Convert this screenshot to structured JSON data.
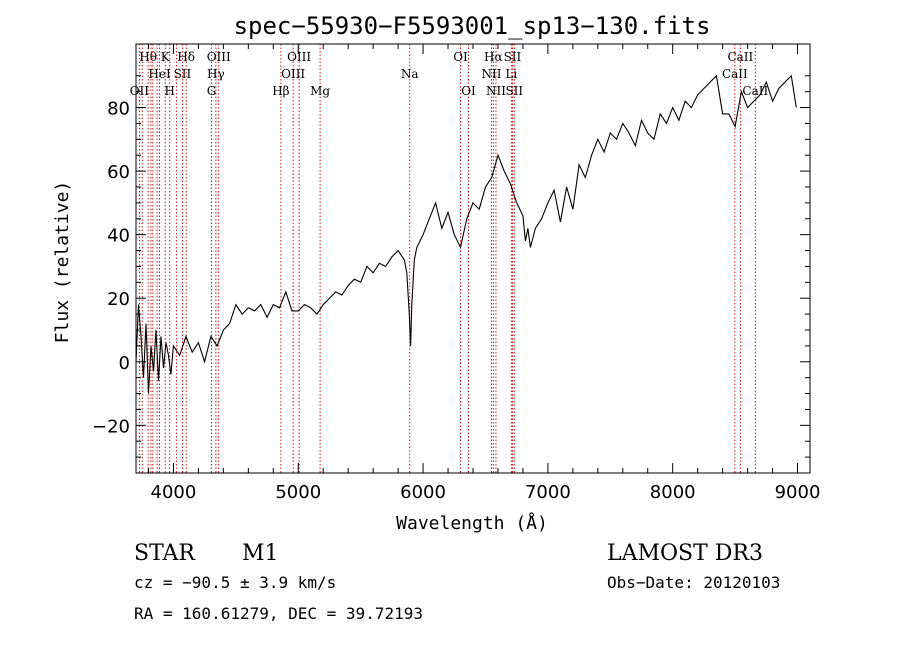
{
  "chart_data": {
    "type": "line",
    "title": "spec−55930−F5593001_sp13−130.fits",
    "xlabel": "Wavelength (Å)",
    "ylabel": "Flux (relative)",
    "xlim": [
      3700,
      9100
    ],
    "ylim": [
      -35,
      100
    ],
    "xticks": [
      {
        "value": 4000,
        "label": "4000"
      },
      {
        "value": 5000,
        "label": "5000"
      },
      {
        "value": 6000,
        "label": "6000"
      },
      {
        "value": 7000,
        "label": "7000"
      },
      {
        "value": 8000,
        "label": "8000"
      },
      {
        "value": 9000,
        "label": "9000"
      }
    ],
    "yticks": [
      {
        "value": -20,
        "label": "−20"
      },
      {
        "value": 0,
        "label": "0"
      },
      {
        "value": 20,
        "label": "20"
      },
      {
        "value": 40,
        "label": "40"
      },
      {
        "value": 60,
        "label": "60"
      },
      {
        "value": 80,
        "label": "80"
      }
    ],
    "series": [
      {
        "name": "flux",
        "color": "#000000",
        "x": [
          3700,
          3720,
          3740,
          3760,
          3780,
          3800,
          3820,
          3840,
          3860,
          3880,
          3900,
          3920,
          3940,
          3960,
          3980,
          4000,
          4050,
          4100,
          4150,
          4200,
          4250,
          4300,
          4350,
          4400,
          4450,
          4500,
          4550,
          4600,
          4650,
          4700,
          4750,
          4800,
          4850,
          4900,
          4950,
          5000,
          5050,
          5100,
          5150,
          5200,
          5250,
          5300,
          5350,
          5400,
          5450,
          5500,
          5550,
          5600,
          5650,
          5700,
          5750,
          5800,
          5850,
          5870,
          5890,
          5900,
          5910,
          5930,
          5950,
          6000,
          6050,
          6100,
          6150,
          6200,
          6250,
          6300,
          6350,
          6400,
          6450,
          6500,
          6550,
          6600,
          6650,
          6700,
          6750,
          6800,
          6820,
          6840,
          6860,
          6900,
          6950,
          7000,
          7050,
          7100,
          7150,
          7200,
          7250,
          7300,
          7350,
          7400,
          7450,
          7500,
          7550,
          7600,
          7650,
          7700,
          7750,
          7800,
          7850,
          7900,
          7950,
          8000,
          8050,
          8100,
          8150,
          8200,
          8250,
          8300,
          8350,
          8400,
          8450,
          8500,
          8550,
          8600,
          8650,
          8700,
          8750,
          8800,
          8850,
          8900,
          8950,
          8990
        ],
        "y": [
          0,
          18,
          8,
          -5,
          12,
          -10,
          5,
          -3,
          10,
          -6,
          8,
          -2,
          6,
          2,
          -4,
          5,
          2,
          8,
          3,
          6,
          0,
          8,
          5,
          10,
          12,
          18,
          15,
          17,
          16,
          18,
          14,
          18,
          17,
          22,
          16,
          16,
          18,
          17,
          15,
          18,
          20,
          22,
          21,
          24,
          26,
          25,
          30,
          28,
          31,
          30,
          33,
          35,
          32,
          28,
          15,
          5,
          18,
          32,
          36,
          40,
          45,
          50,
          42,
          47,
          40,
          36,
          45,
          50,
          48,
          55,
          58,
          65,
          60,
          56,
          50,
          46,
          38,
          42,
          36,
          42,
          45,
          50,
          54,
          44,
          55,
          48,
          62,
          58,
          65,
          70,
          66,
          72,
          70,
          75,
          72,
          68,
          76,
          72,
          70,
          78,
          75,
          80,
          76,
          82,
          80,
          84,
          86,
          88,
          90,
          78,
          78,
          74,
          85,
          80,
          82,
          84,
          88,
          82,
          86,
          88,
          90,
          80
        ]
      }
    ],
    "spectral_lines": [
      {
        "x": 3727,
        "label": "OII",
        "row": 2
      },
      {
        "x": 3750,
        "label": "",
        "row": 1
      },
      {
        "x": 3797,
        "label": "Hθ",
        "row": 0
      },
      {
        "x": 3820,
        "label": "",
        "row": 1
      },
      {
        "x": 3835,
        "label": "",
        "row": 0
      },
      {
        "x": 3869,
        "label": "",
        "row": 2
      },
      {
        "x": 3889,
        "label": "HeI",
        "row": 1
      },
      {
        "x": 3934,
        "label": "K",
        "row": 0
      },
      {
        "x": 3970,
        "label": "H",
        "row": 2
      },
      {
        "x": 4026,
        "label": "",
        "row": 1
      },
      {
        "x": 4072,
        "label": "SII",
        "row": 1
      },
      {
        "x": 4102,
        "label": "Hδ",
        "row": 0
      },
      {
        "x": 4305,
        "label": "G",
        "row": 2
      },
      {
        "x": 4340,
        "label": "Hγ",
        "row": 1
      },
      {
        "x": 4363,
        "label": "OIII",
        "row": 0
      },
      {
        "x": 4861,
        "label": "Hβ",
        "row": 2
      },
      {
        "x": 4959,
        "label": "OIII",
        "row": 1
      },
      {
        "x": 5007,
        "label": "OIII",
        "row": 0
      },
      {
        "x": 5175,
        "label": "Mg",
        "row": 2
      },
      {
        "x": 5893,
        "label": "Na",
        "row": 1
      },
      {
        "x": 6300,
        "label": "OI",
        "row": 0
      },
      {
        "x": 6364,
        "label": "OI",
        "row": 2
      },
      {
        "x": 6548,
        "label": "NII",
        "row": 1
      },
      {
        "x": 6563,
        "label": "Hα",
        "row": 0
      },
      {
        "x": 6584,
        "label": "NII",
        "row": 2
      },
      {
        "x": 6707,
        "label": "Li",
        "row": 1
      },
      {
        "x": 6716,
        "label": "SII",
        "row": 0
      },
      {
        "x": 6731,
        "label": "SII",
        "row": 2
      },
      {
        "x": 8498,
        "label": "CaII",
        "row": 1
      },
      {
        "x": 8542,
        "label": "CaII",
        "row": 0
      },
      {
        "x": 8662,
        "label": "CaII",
        "row": 2
      }
    ],
    "line_color": "#c00000"
  },
  "info": {
    "class": "STAR",
    "subclass": "M1",
    "survey": "LAMOST DR3",
    "cz": "cz = −90.5 ± 3.9 km/s",
    "obs_date": "Obs−Date: 20120103",
    "radec": "RA = 160.61279, DEC =  39.72193"
  }
}
